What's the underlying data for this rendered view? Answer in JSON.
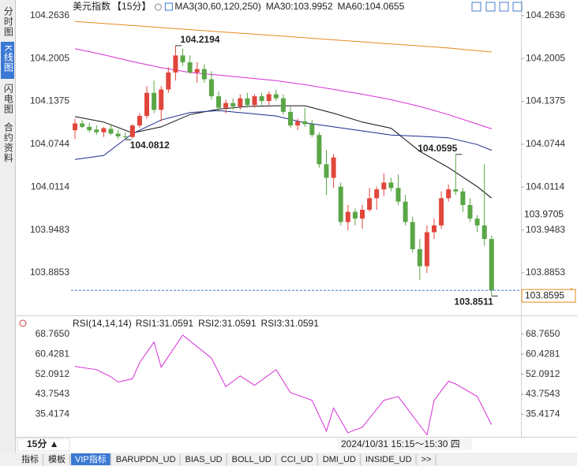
{
  "chart_data": [
    {
      "type": "candlestick",
      "title": "美元指数",
      "period": "【15分】",
      "legend": [
        {
          "text": "MA3(30,60,120,250)",
          "color": "#222222"
        },
        {
          "text": "MA30:103.9952",
          "color": "#222222"
        },
        {
          "text": "MA60:104.0655",
          "color": "#1c2a8c"
        }
      ],
      "up_color": "#e0463c",
      "down_color": "#5aa646",
      "open": [
        104.095,
        104.105,
        104.1,
        104.096,
        104.092,
        104.097,
        104.09,
        104.086,
        104.085,
        104.102,
        104.116,
        104.15,
        104.125,
        104.155,
        104.18,
        104.205,
        104.195,
        104.18,
        104.185,
        104.17,
        104.145,
        104.128,
        104.135,
        104.13,
        104.142,
        104.132,
        104.145,
        104.138,
        104.148,
        104.142,
        104.122,
        104.102,
        104.108,
        104.104,
        104.088,
        104.045,
        104.025,
        104.012,
        103.96,
        103.975,
        103.965,
        103.978,
        103.995,
        104.008,
        104.018,
        104.01,
        103.99,
        103.96,
        103.92,
        103.895,
        103.945,
        103.955,
        103.995,
        104.008,
        104.005,
        103.985,
        103.965,
        103.955,
        103.935
      ],
      "high": [
        104.112,
        104.11,
        104.106,
        104.102,
        104.1,
        104.103,
        104.096,
        104.092,
        104.104,
        104.12,
        104.16,
        104.168,
        104.16,
        104.188,
        104.2194,
        104.215,
        104.205,
        104.195,
        104.192,
        104.182,
        104.152,
        104.14,
        104.142,
        104.148,
        104.15,
        104.148,
        104.15,
        104.152,
        104.155,
        104.148,
        104.13,
        104.112,
        104.128,
        104.11,
        104.092,
        104.066,
        104.06,
        104.018,
        103.985,
        103.98,
        103.985,
        104.01,
        104.012,
        104.032,
        104.025,
        104.03,
        104.0,
        103.968,
        103.935,
        103.955,
        103.965,
        104.005,
        104.015,
        104.0595,
        104.01,
        103.995,
        103.97,
        104.045,
        103.94
      ],
      "low": [
        104.082,
        104.098,
        104.092,
        104.088,
        104.085,
        104.088,
        104.082,
        104.0812,
        104.083,
        104.098,
        104.112,
        104.12,
        104.108,
        104.15,
        104.168,
        104.19,
        104.178,
        104.165,
        104.165,
        104.14,
        104.122,
        104.12,
        104.125,
        104.125,
        104.128,
        104.128,
        104.132,
        104.132,
        104.138,
        104.118,
        104.098,
        104.095,
        104.1,
        104.085,
        104.04,
        104.0,
        104.01,
        103.955,
        103.948,
        103.955,
        103.95,
        103.975,
        103.978,
        103.998,
        104.005,
        103.985,
        103.955,
        103.915,
        103.875,
        103.885,
        103.935,
        103.95,
        103.99,
        104.0,
        103.975,
        103.96,
        103.945,
        103.925,
        103.8511
      ],
      "close": [
        104.105,
        104.1,
        104.095,
        104.092,
        104.098,
        104.09,
        104.086,
        104.085,
        104.102,
        104.116,
        104.15,
        104.125,
        104.155,
        104.18,
        104.205,
        104.195,
        104.18,
        104.185,
        104.17,
        104.145,
        104.128,
        104.135,
        104.13,
        104.142,
        104.132,
        104.145,
        104.138,
        104.148,
        104.142,
        104.122,
        104.102,
        104.108,
        104.104,
        104.088,
        104.045,
        104.025,
        104.055,
        103.96,
        103.975,
        103.965,
        103.978,
        103.995,
        104.008,
        104.018,
        104.01,
        103.99,
        103.96,
        103.92,
        103.895,
        103.945,
        103.955,
        103.995,
        104.008,
        104.005,
        103.985,
        103.965,
        103.955,
        103.935,
        103.8595
      ],
      "ma_x": [
        0,
        4,
        8,
        12,
        16,
        20,
        24,
        28,
        32,
        36,
        40,
        44,
        48,
        52,
        56,
        58
      ],
      "ma_lines": [
        {
          "color": "#111111",
          "values": [
            104.115,
            104.107,
            104.091,
            104.1,
            104.118,
            104.126,
            104.13,
            104.131,
            104.131,
            104.12,
            104.107,
            104.098,
            104.064,
            104.04,
            104.012,
            103.9952
          ]
        },
        {
          "color": "#1c2a8c",
          "values": [
            104.052,
            104.058,
            104.09,
            104.11,
            104.121,
            104.124,
            104.12,
            104.116,
            104.106,
            104.1,
            104.094,
            104.088,
            104.086,
            104.084,
            104.074,
            104.0655
          ]
        },
        {
          "color": "#d62fd6",
          "values": [
            104.215,
            104.206,
            104.196,
            104.187,
            104.18,
            104.176,
            104.172,
            104.168,
            104.162,
            104.155,
            104.148,
            104.14,
            104.13,
            104.118,
            104.104,
            104.097
          ]
        },
        {
          "color": "#e58a1f",
          "values": [
            104.255,
            104.252,
            104.249,
            104.246,
            104.243,
            104.24,
            104.237,
            104.234,
            104.231,
            104.228,
            104.225,
            104.222,
            104.219,
            104.216,
            104.212,
            104.21
          ]
        }
      ],
      "ylim": [
        103.84,
        104.275
      ],
      "yticks": [
        104.2636,
        104.2005,
        104.1375,
        104.0744,
        104.0114,
        103.9483,
        103.8853
      ],
      "annotations": [
        {
          "value": 104.2194,
          "color": "#d43c3c"
        },
        {
          "value": 104.0812,
          "color": "#5aa646"
        },
        {
          "value": 104.0595,
          "color": "#d43c3c"
        },
        {
          "value": 103.8511,
          "color": "#5aa646"
        }
      ],
      "ref_price": 103.9705,
      "last_price": 103.8595,
      "price_color": "#e58a1f",
      "grid": false
    },
    {
      "type": "line",
      "title": "RSI(14,14,14)",
      "legend": [
        {
          "text": "RSI1:31.0591",
          "color": "#222222"
        },
        {
          "text": "RSI2:31.0591",
          "color": "#2233cc"
        },
        {
          "text": "RSI3:31.0591",
          "color": "#d62fd6"
        }
      ],
      "x": [
        0,
        3,
        5,
        6,
        8,
        9,
        11,
        12,
        15,
        17,
        19,
        21,
        23,
        25,
        28,
        30,
        33,
        35,
        36,
        38,
        40,
        43,
        45,
        49,
        50,
        52,
        53,
        56,
        58
      ],
      "series": [
        {
          "color": "#d62fd6",
          "values": [
            55.3,
            54,
            51,
            48.8,
            50.2,
            56.9,
            65.5,
            55,
            68.4,
            63.6,
            58.8,
            46.9,
            51.4,
            47.5,
            54,
            44.4,
            41.2,
            28.4,
            38,
            27.7,
            30,
            41.2,
            42.8,
            26.8,
            41.2,
            49.2,
            48,
            42.8,
            31.0591
          ]
        }
      ],
      "ylim": [
        25,
        73
      ],
      "yticks": [
        {
          "value": 68.765,
          "label": "68.7650"
        },
        60.4281,
        52.0912,
        43.7543,
        35.4174
      ],
      "grid": false
    }
  ],
  "sidebar_tabs": [
    "分时图",
    "K线图",
    "闪电图",
    "合约资料"
  ],
  "period_button": "15分 ▲",
  "cursor_time": "2024/10/31 15:15～15:30 四",
  "footer_tabs": [
    "指标",
    "模板",
    "VIP指标",
    "BARUPDN_UD",
    "BIAS_UD",
    "BOLL_UD",
    "CCI_UD",
    "DMI_UD",
    "INSIDE_UD",
    ">>"
  ]
}
